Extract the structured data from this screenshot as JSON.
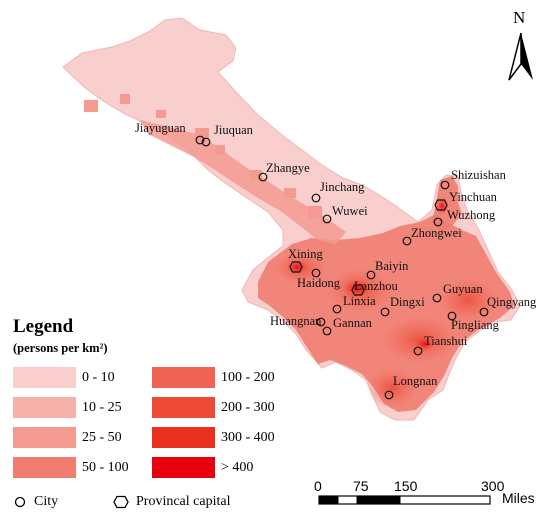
{
  "legend": {
    "title": "Legend",
    "subtitle": "(persons per km²)",
    "classes": [
      {
        "label": "0 - 10",
        "color": "#f8cfcd"
      },
      {
        "label": "10 - 25",
        "color": "#f6b1ab"
      },
      {
        "label": "25 - 50",
        "color": "#f49a91"
      },
      {
        "label": "50 - 100",
        "color": "#f17c70"
      },
      {
        "label": "100 - 200",
        "color": "#ee6351"
      },
      {
        "label": "200 - 300",
        "color": "#ec4a35"
      },
      {
        "label": "300 - 400",
        "color": "#ea301f"
      },
      {
        "label": "> 400",
        "color": "#e8000e"
      }
    ],
    "symbols": {
      "city": "City",
      "capital": "Provincal capital"
    }
  },
  "north_arrow": {
    "label": "N"
  },
  "scale_bar": {
    "ticks": [
      "0",
      "75",
      "150",
      "300"
    ],
    "unit": "Miles"
  },
  "cities": [
    {
      "name": "Jiayuguan"
    },
    {
      "name": "Jiuquan"
    },
    {
      "name": "Zhangye"
    },
    {
      "name": "Jinchang"
    },
    {
      "name": "Wuwei"
    },
    {
      "name": "Shizuishan"
    },
    {
      "name": "Yinchuan"
    },
    {
      "name": "Wuzhong"
    },
    {
      "name": "Zhongwei"
    },
    {
      "name": "Xining"
    },
    {
      "name": "Baiyin"
    },
    {
      "name": "Haidong"
    },
    {
      "name": "Lanzhou"
    },
    {
      "name": "Guyuan"
    },
    {
      "name": "Qingyang"
    },
    {
      "name": "Linxia"
    },
    {
      "name": "Dingxi"
    },
    {
      "name": "Huangnan"
    },
    {
      "name": "Gannan"
    },
    {
      "name": "Pingliang"
    },
    {
      "name": "Tianshui"
    },
    {
      "name": "Longnan"
    }
  ]
}
